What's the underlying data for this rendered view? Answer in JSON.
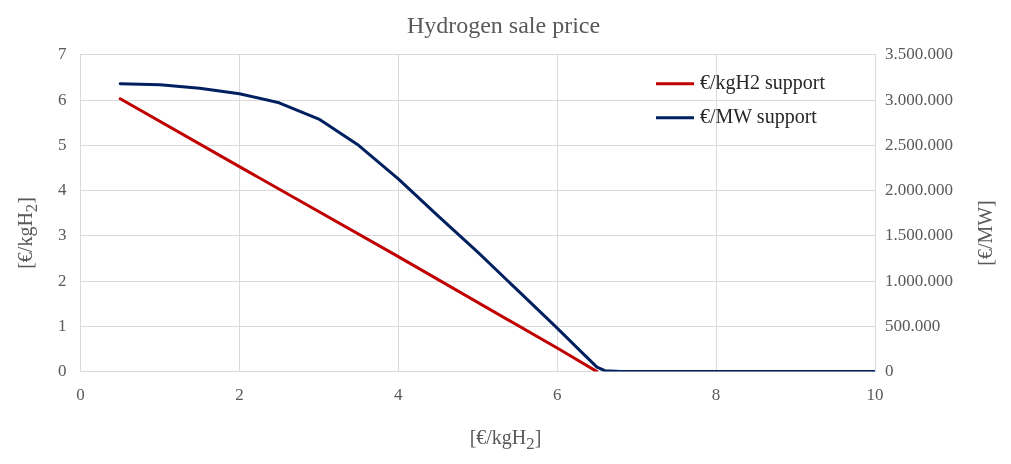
{
  "chart_data": {
    "type": "line",
    "title": "Hydrogen sale price",
    "xlabel": "[€/kgH$_{2}$]",
    "ylabel": "[€/kgH$_{2}$]",
    "y2label": "[€/MW]",
    "xlim": [
      0,
      10
    ],
    "xticks": [
      0,
      2,
      4,
      6,
      8,
      10
    ],
    "ylim": [
      0,
      7
    ],
    "yticks": [
      0,
      1,
      2,
      3,
      4,
      5,
      6,
      7
    ],
    "y2lim": [
      0,
      3500000
    ],
    "y2ticks": [
      0,
      {
        "value": 500000,
        "label": "500.000"
      },
      {
        "value": 1000000,
        "label": "1.000.000"
      },
      {
        "value": 1500000,
        "label": "1.500.000"
      },
      {
        "value": 2000000,
        "label": "2.000.000"
      },
      {
        "value": 2500000,
        "label": "2.500.000"
      },
      {
        "value": 3000000,
        "label": "3.000.000"
      },
      {
        "value": 3500000,
        "label": "3.500.000"
      }
    ],
    "grid": true,
    "legend": "top right",
    "marker": "none",
    "series": [
      {
        "name": "€/kgH2 support",
        "color": "#c00000",
        "x": [
          0.5,
          2,
          4,
          6,
          6.5
        ],
        "values": [
          6.03,
          4.53,
          2.54,
          0.52,
          0
        ]
      },
      {
        "name": "€/MW support",
        "color": "#002060",
        "axis": "y2",
        "x": [
          0.5,
          1,
          1.5,
          2,
          2.5,
          3,
          3.5,
          4,
          4.5,
          5,
          5.5,
          6,
          6.3,
          6.5,
          6.6,
          6.8,
          7,
          8,
          9,
          10
        ],
        "values": [
          3180000,
          3170000,
          3130000,
          3070000,
          2970000,
          2790000,
          2500000,
          2130000,
          1720000,
          1320000,
          900000,
          480000,
          220000,
          50000,
          10000,
          0,
          0,
          0,
          0,
          0
        ]
      }
    ]
  }
}
